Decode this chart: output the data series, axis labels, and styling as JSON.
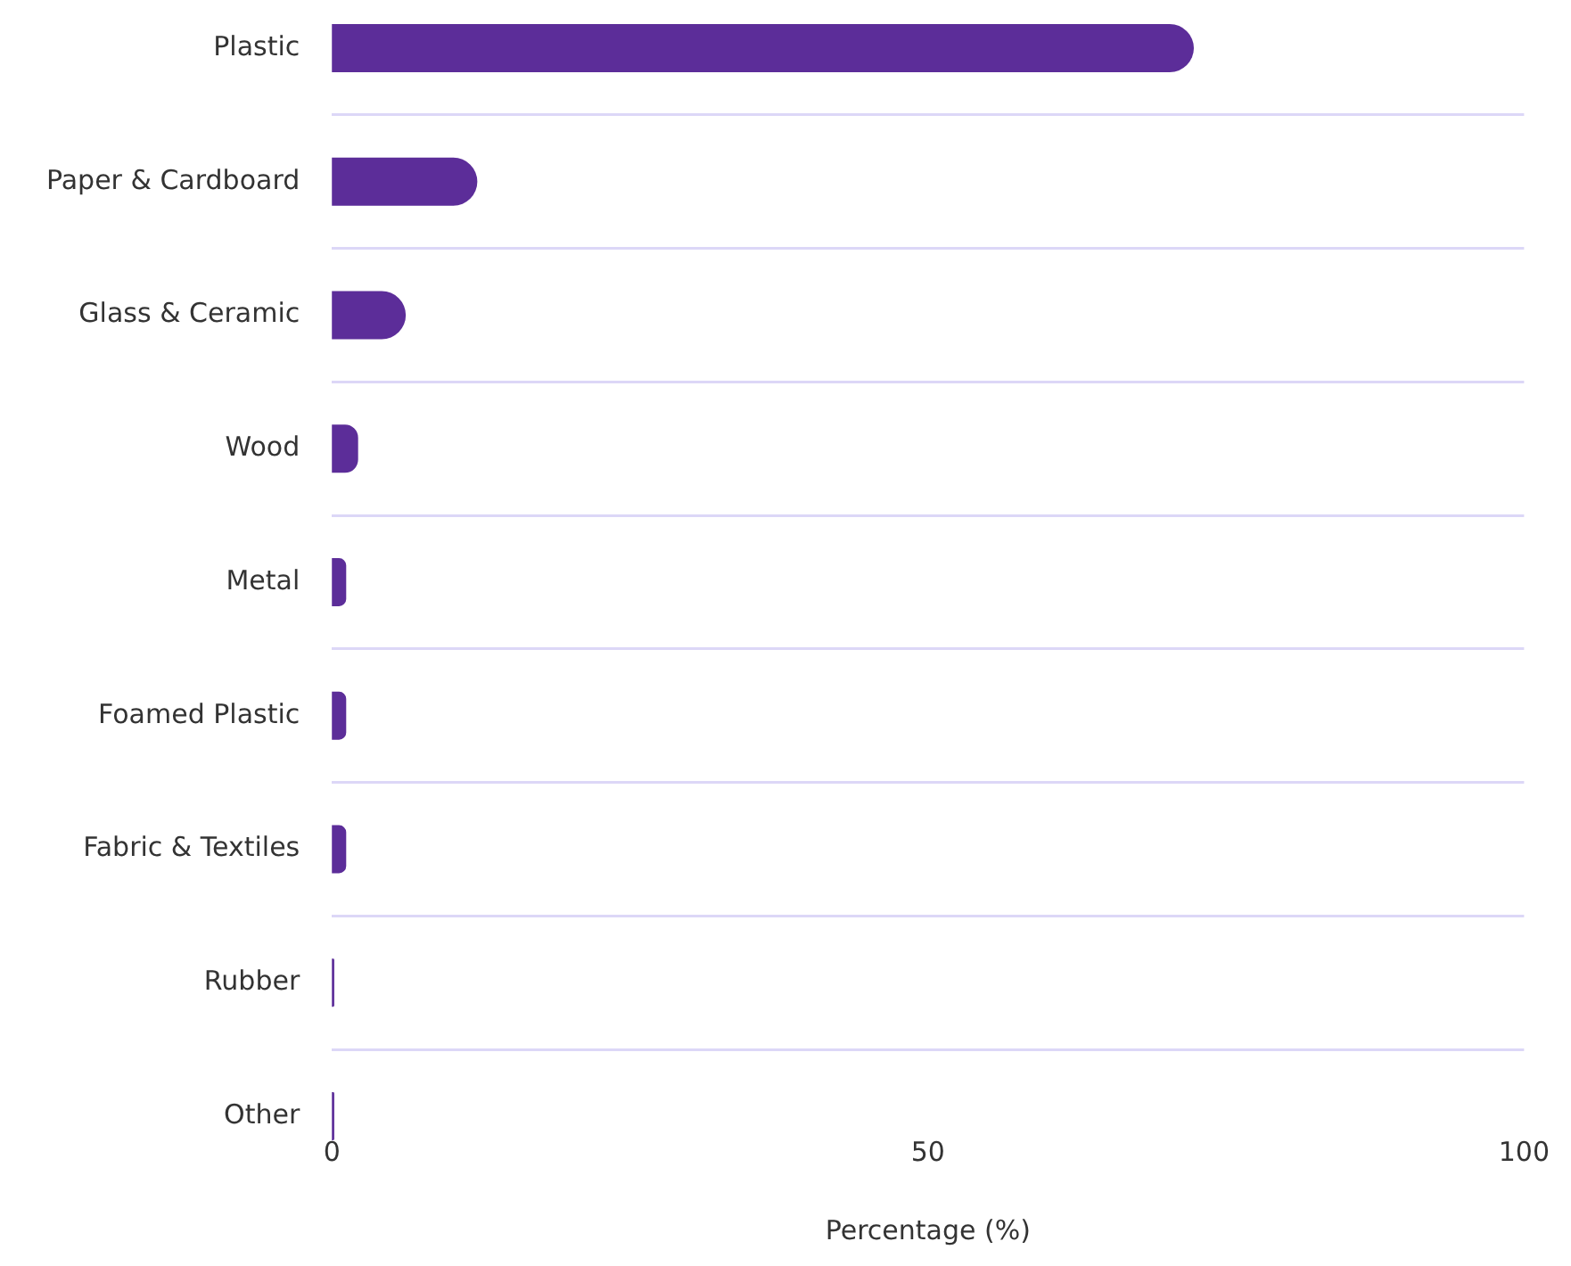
{
  "chart_data": {
    "type": "bar",
    "orientation": "horizontal",
    "xlabel": "Percentage (%)",
    "categories": [
      "Plastic",
      "Paper & Cardboard",
      "Glass & Ceramic",
      "Wood",
      "Metal",
      "Foamed Plastic",
      "Fabric & Textiles",
      "Rubber",
      "Other"
    ],
    "values": [
      72.3,
      12.2,
      6.2,
      2.2,
      1.2,
      1.2,
      1.2,
      0.2,
      0.2
    ],
    "color": "#5c2d99",
    "xlim": [
      0,
      100
    ],
    "xticks": [
      0,
      50,
      100
    ],
    "grid": "y",
    "legend": false
  }
}
